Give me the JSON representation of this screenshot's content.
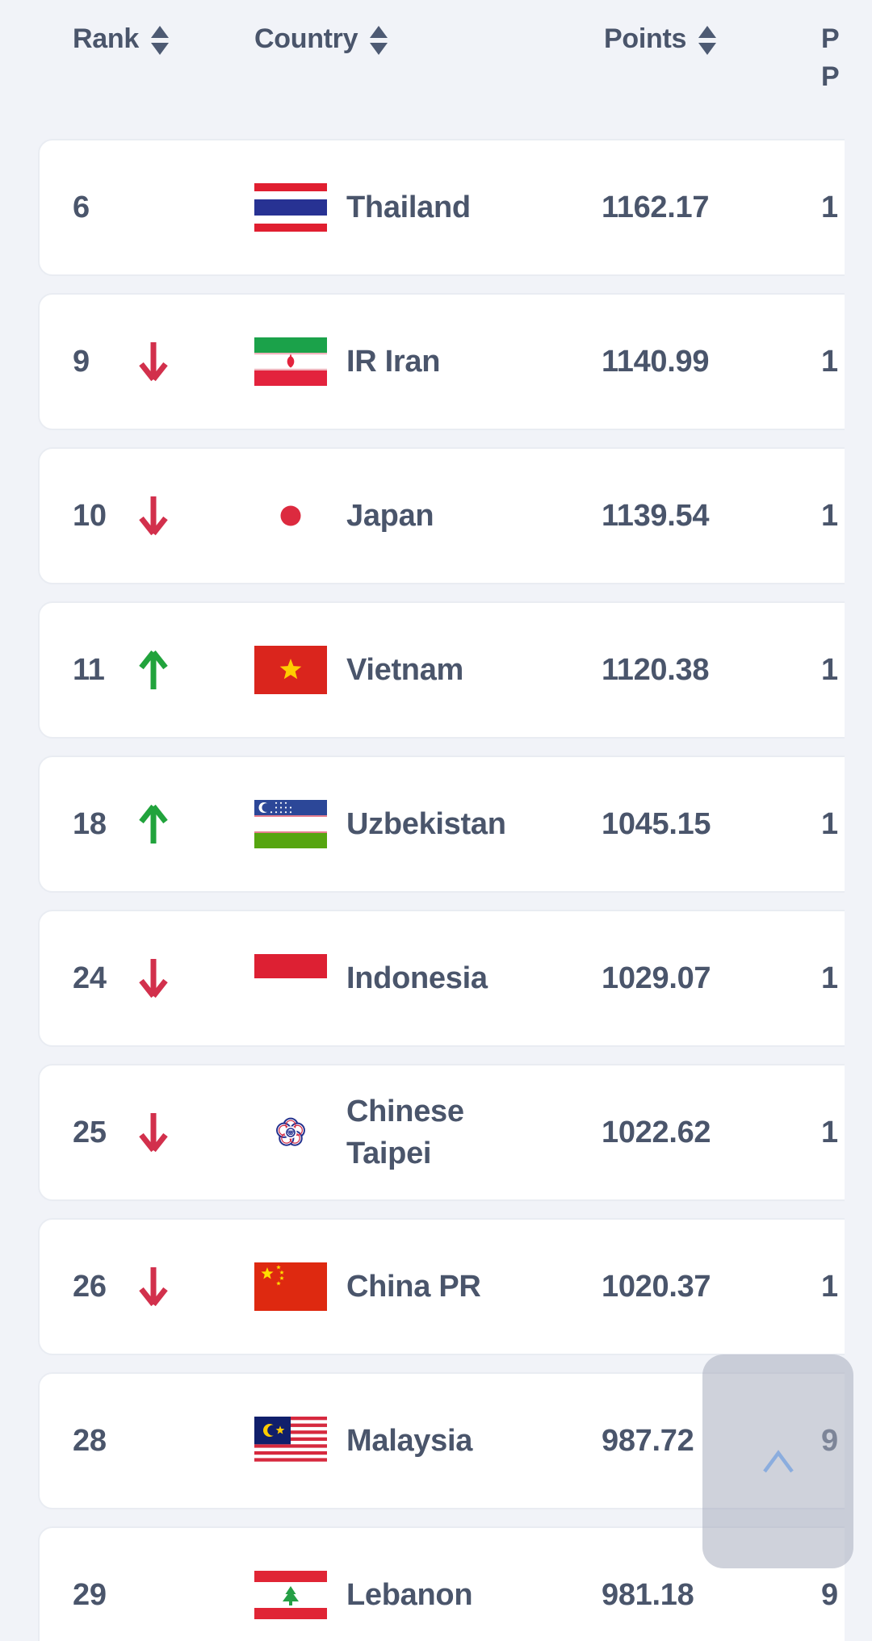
{
  "header": {
    "columns": [
      {
        "label": "Rank",
        "sortable": true
      },
      {
        "label": "Country",
        "sortable": true
      },
      {
        "label": "Points",
        "sortable": true
      },
      {
        "label_lines": [
          "P",
          "P"
        ],
        "sortable": false
      }
    ]
  },
  "rows": [
    {
      "rank": "6",
      "movement": "none",
      "country": "Thailand",
      "flag": "thailand",
      "points": "1162.17",
      "prev_points_visible": "1"
    },
    {
      "rank": "9",
      "movement": "down",
      "country": "IR Iran",
      "flag": "iran",
      "points": "1140.99",
      "prev_points_visible": "1"
    },
    {
      "rank": "10",
      "movement": "down",
      "country": "Japan",
      "flag": "japan",
      "points": "1139.54",
      "prev_points_visible": "1"
    },
    {
      "rank": "11",
      "movement": "up",
      "country": "Vietnam",
      "flag": "vietnam",
      "points": "1120.38",
      "prev_points_visible": "1"
    },
    {
      "rank": "18",
      "movement": "up",
      "country": "Uzbekistan",
      "flag": "uzbekistan",
      "points": "1045.15",
      "prev_points_visible": "1"
    },
    {
      "rank": "24",
      "movement": "down",
      "country": "Indonesia",
      "flag": "indonesia",
      "points": "1029.07",
      "prev_points_visible": "1"
    },
    {
      "rank": "25",
      "movement": "down",
      "country": "Chinese Taipei",
      "flag": "chinese-taipei",
      "points": "1022.62",
      "prev_points_visible": "1"
    },
    {
      "rank": "26",
      "movement": "down",
      "country": "China PR",
      "flag": "china-pr",
      "points": "1020.37",
      "prev_points_visible": "1"
    },
    {
      "rank": "28",
      "movement": "none",
      "country": "Malaysia",
      "flag": "malaysia",
      "points": "987.72",
      "prev_points_visible": "9"
    },
    {
      "rank": "29",
      "movement": "none",
      "country": "Lebanon",
      "flag": "lebanon",
      "points": "981.18",
      "prev_points_visible": "9"
    }
  ],
  "colors": {
    "positive": "#21a33c",
    "negative": "#d2304c",
    "text": "#4a556b",
    "chevron": "#8badde"
  }
}
